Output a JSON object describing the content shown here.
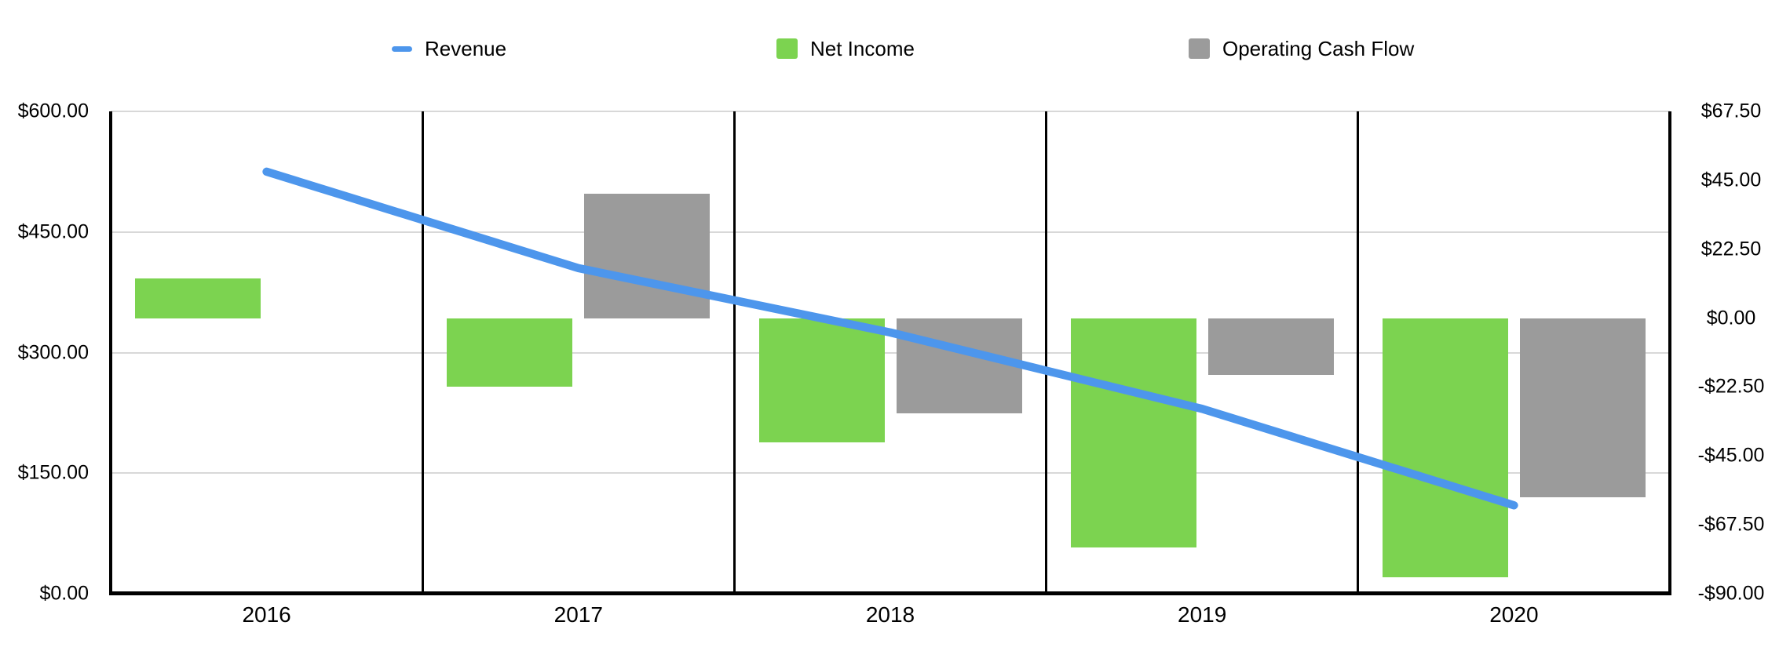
{
  "legend": {
    "items": [
      {
        "label": "Revenue",
        "marker": "line-dash",
        "color": "#4D96EC"
      },
      {
        "label": "Net Income",
        "marker": "square",
        "color": "#7CD350"
      },
      {
        "label": "Operating Cash Flow",
        "marker": "square",
        "color": "#9B9B9B"
      }
    ]
  },
  "axes": {
    "left": {
      "ticks": [
        {
          "label": "$600.00",
          "value": 600
        },
        {
          "label": "$450.00",
          "value": 450
        },
        {
          "label": "$300.00",
          "value": 300
        },
        {
          "label": "$150.00",
          "value": 150
        },
        {
          "label": "$0.00",
          "value": 0
        }
      ]
    },
    "right": {
      "ticks": [
        {
          "label": "$67.50",
          "value": 67.5
        },
        {
          "label": "$45.00",
          "value": 45
        },
        {
          "label": "$22.50",
          "value": 22.5
        },
        {
          "label": "$0.00",
          "value": 0
        },
        {
          "label": "-$22.50",
          "value": -22.5
        },
        {
          "label": "-$45.00",
          "value": -45
        },
        {
          "label": "-$67.50",
          "value": -67.5
        },
        {
          "label": "-$90.00",
          "value": -90
        }
      ]
    }
  },
  "chart_data": {
    "type": "combo",
    "categories": [
      "2016",
      "2017",
      "2018",
      "2019",
      "2020"
    ],
    "series": [
      {
        "name": "Revenue",
        "type": "line",
        "axis": "left",
        "color": "#4D96EC",
        "values": [
          525,
          405,
          325,
          230,
          110
        ]
      },
      {
        "name": "Net Income",
        "type": "bar",
        "axis": "right",
        "color": "#7CD350",
        "values": [
          13,
          -22.5,
          -40.5,
          -75,
          -84.5
        ]
      },
      {
        "name": "Operating Cash Flow",
        "type": "bar",
        "axis": "right",
        "color": "#9B9B9B",
        "values": [
          null,
          40.5,
          -31,
          -18.5,
          -58.5
        ]
      }
    ],
    "left_axis": {
      "min": 0,
      "max": 600,
      "tick_step": 150
    },
    "right_axis": {
      "min": -90,
      "max": 67.5,
      "tick_step": 22.5
    },
    "grid": "horizontal-left-ticks",
    "legend_position": "top"
  },
  "colors": {
    "grid": "#D8D8D8",
    "axis": "#000000",
    "background": "#FFFFFF",
    "text": "#000000"
  }
}
